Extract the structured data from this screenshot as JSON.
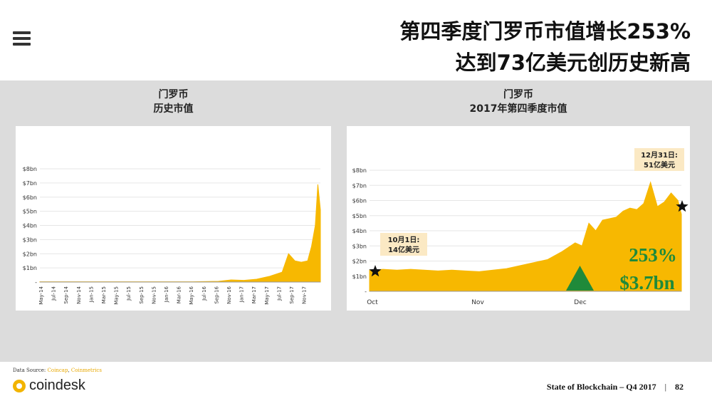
{
  "header": {
    "title_line1": "第四季度门罗币市值增长253%",
    "title_line2": "达到73亿美元创历史新高"
  },
  "left_panel": {
    "title_line1": "门罗币",
    "title_line2": "历史市值"
  },
  "right_panel": {
    "title_line1": "门罗币",
    "title_line2": "2017年第四季度市值",
    "callout_start_line1": "10月1日:",
    "callout_start_line2": "14亿美元",
    "callout_end_line1": "12月31日:",
    "callout_end_line2": "51亿美元",
    "growth_pct": "253%",
    "growth_abs": "$3.7bn"
  },
  "footer": {
    "source_label": "Data Source:",
    "source_1": "Coincap",
    "source_sep": ",",
    "source_2": "Coinmetrics",
    "logo_text": "coindesk",
    "report": "State of Blockchain – Q4 2017",
    "sep": "|",
    "page": "82"
  },
  "colors": {
    "area": "#f7b801",
    "growth_text": "#1f8a3a",
    "callout_bg": "#fbe9c4",
    "panel_bg": "#dcdcdc"
  },
  "chart_data": [
    {
      "type": "area",
      "title": "门罗币 历史市值",
      "yticks": [
        "-",
        "$1bn",
        "$2bn",
        "$3bn",
        "$4bn",
        "$5bn",
        "$6bn",
        "$7bn",
        "$8bn"
      ],
      "ylim": [
        0,
        8
      ],
      "xticks": [
        "May-14",
        "Jul-14",
        "Sep-14",
        "Nov-14",
        "Jan-15",
        "Mar-15",
        "May-15",
        "Jul-15",
        "Sep-15",
        "Nov-15",
        "Jan-16",
        "Mar-16",
        "May-16",
        "Jul-16",
        "Sep-16",
        "Nov-16",
        "Jan-17",
        "Mar-17",
        "May-17",
        "Jul-17",
        "Sep-17",
        "Nov-17"
      ],
      "x": [
        0,
        8,
        12,
        14,
        15,
        16,
        17,
        18,
        19,
        19.5,
        20,
        20.5,
        21,
        21.3,
        21.6,
        21.8,
        22
      ],
      "values": [
        0.02,
        0.02,
        0.02,
        0.05,
        0.15,
        0.12,
        0.2,
        0.4,
        0.7,
        2.0,
        1.5,
        1.4,
        1.5,
        2.5,
        4.0,
        6.9,
        5.1
      ],
      "grid": true
    },
    {
      "type": "area",
      "title": "门罗币 2017年第四季度市值",
      "yticks": [
        "-",
        "$1bn",
        "$2bn",
        "$3bn",
        "$4bn",
        "$5bn",
        "$6bn",
        "$7bn",
        "$8bn"
      ],
      "ylim": [
        0,
        8
      ],
      "xticks": [
        "Oct",
        "Nov",
        "Dec"
      ],
      "x": [
        0,
        4,
        8,
        12,
        16,
        20,
        24,
        28,
        32,
        36,
        40,
        44,
        48,
        52,
        56,
        60,
        62,
        64,
        66,
        68,
        70,
        72,
        74,
        76,
        78,
        80,
        82,
        84,
        86,
        88,
        90,
        91
      ],
      "values": [
        1.4,
        1.45,
        1.4,
        1.45,
        1.4,
        1.35,
        1.4,
        1.35,
        1.3,
        1.4,
        1.5,
        1.7,
        1.9,
        2.1,
        2.6,
        3.2,
        3.0,
        4.5,
        4.0,
        4.7,
        4.8,
        4.9,
        5.3,
        5.5,
        5.4,
        5.8,
        7.2,
        5.6,
        5.9,
        6.5,
        6.0,
        5.1
      ],
      "grid": true
    }
  ]
}
